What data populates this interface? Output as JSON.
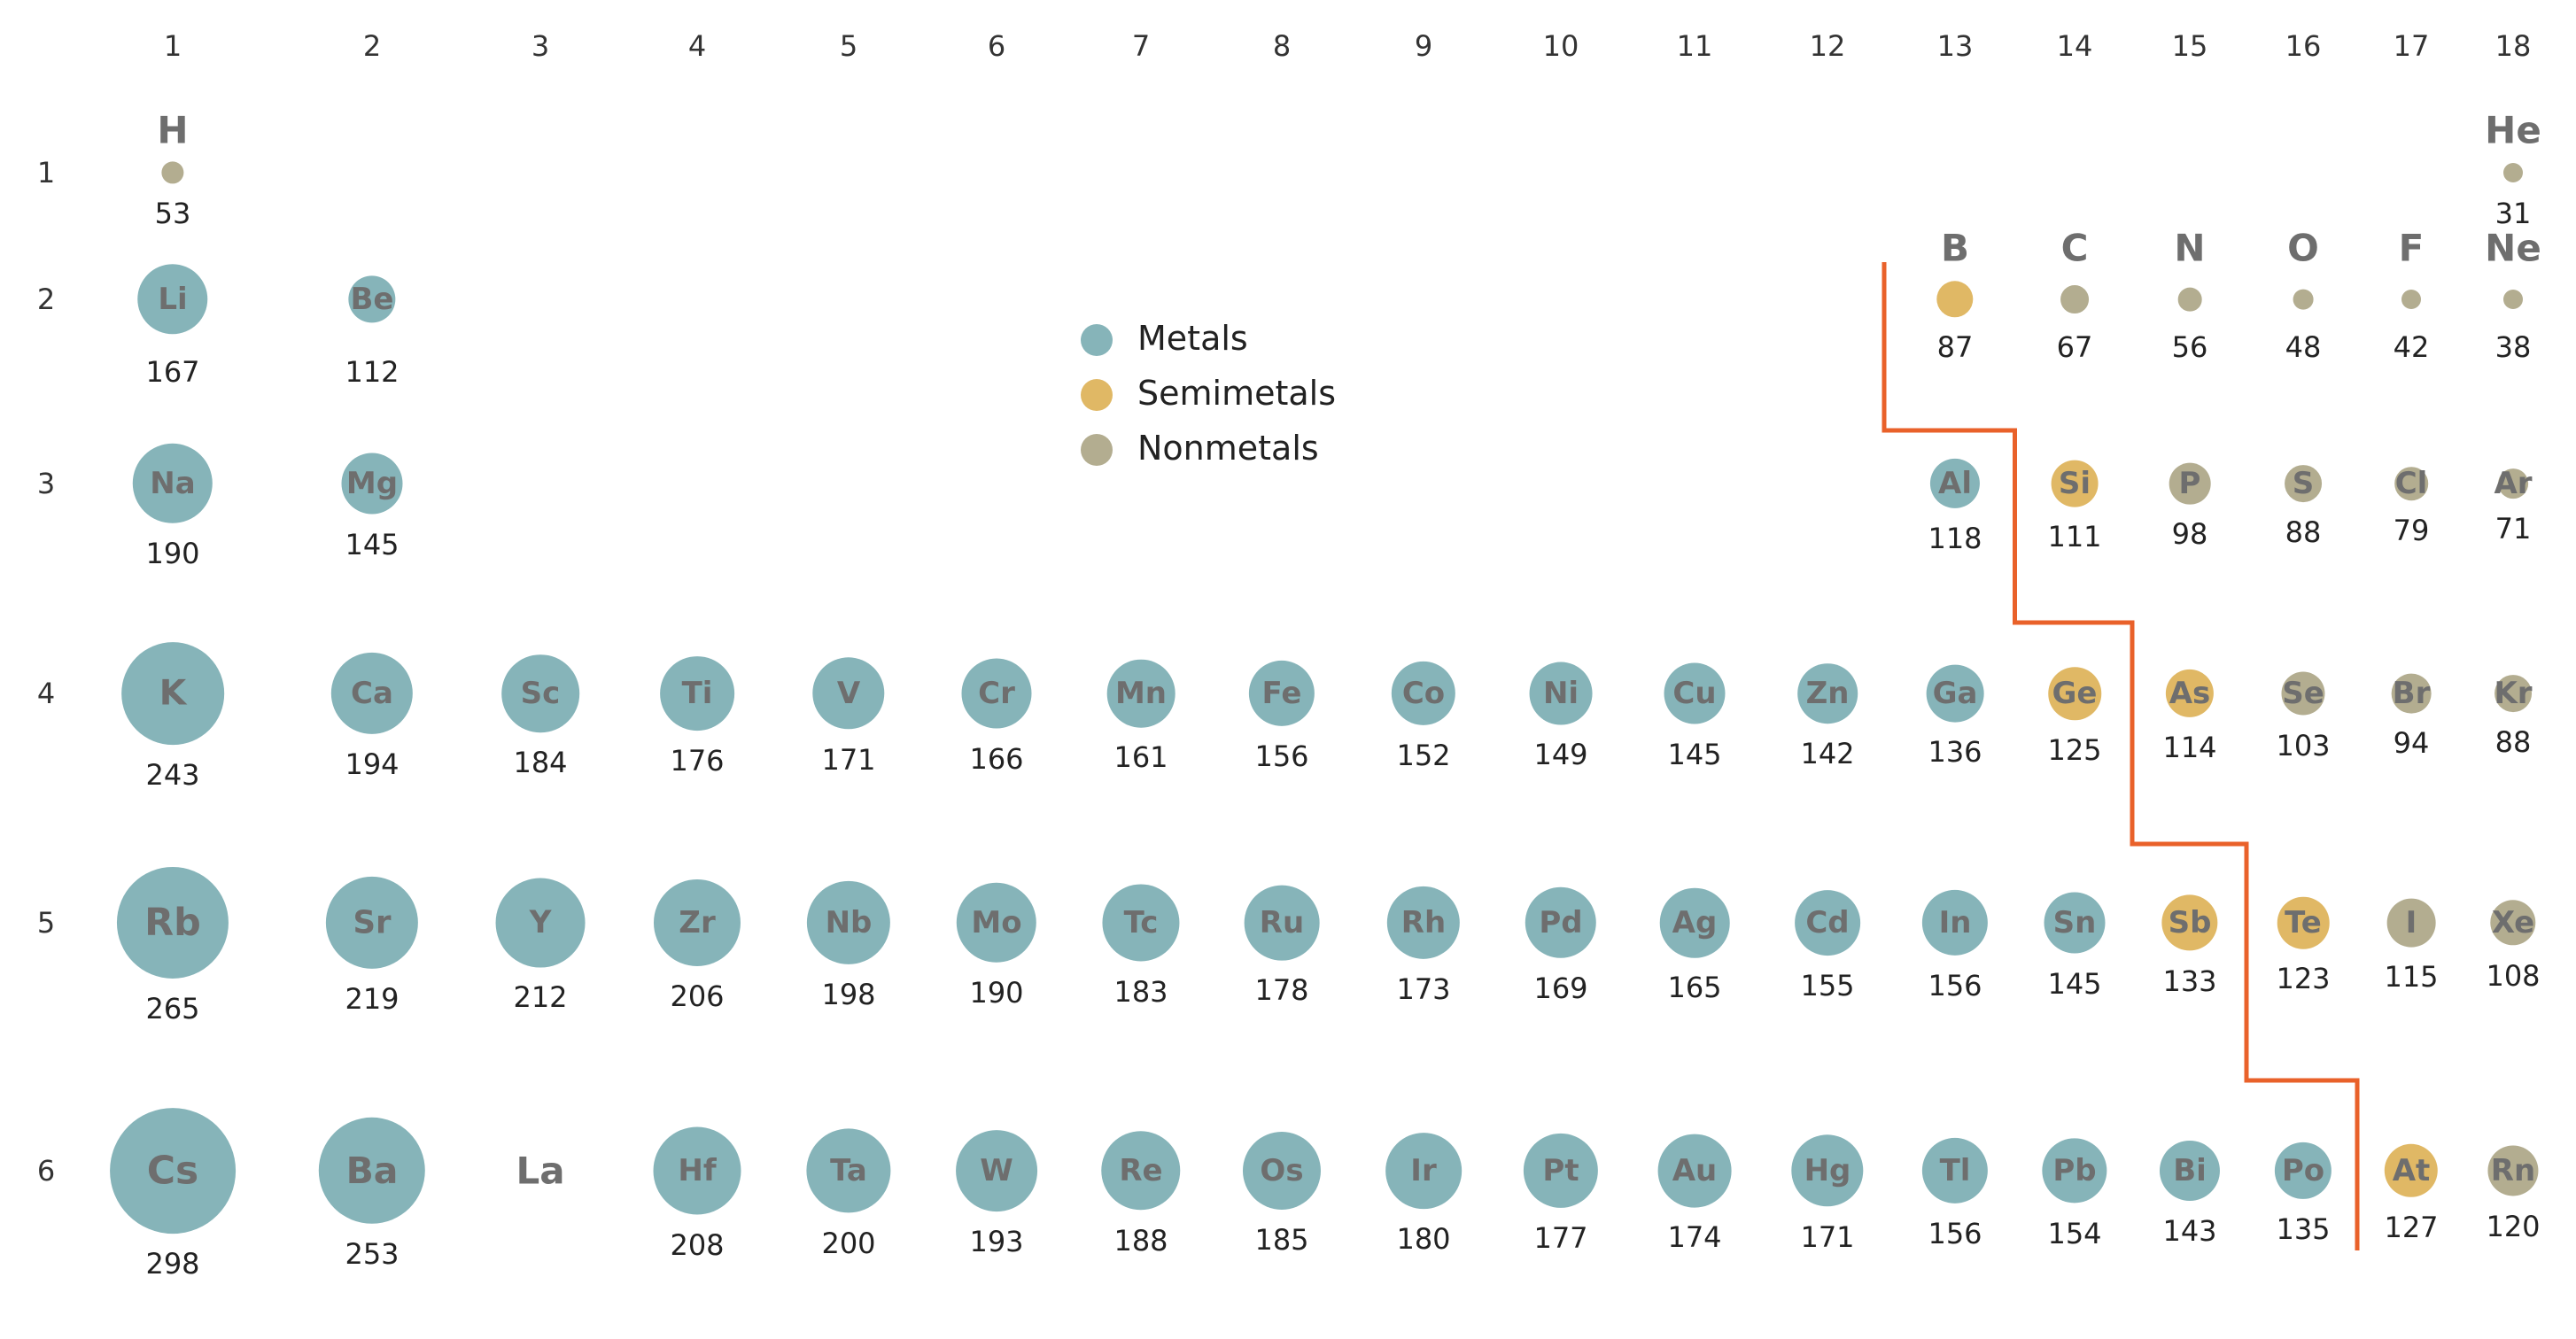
{
  "colors": {
    "metal": "#86b4b9",
    "semimetal": "#e0b865",
    "nonmetal": "#b3ad90",
    "divider": "#e9612a",
    "symbol_text": "#6e6e6e"
  },
  "legend": [
    {
      "category": "metal",
      "label": "Metals"
    },
    {
      "category": "semimetal",
      "label": "Semimetals"
    },
    {
      "category": "nonmetal",
      "label": "Nonmetals"
    }
  ],
  "column_labels": [
    "1",
    "2",
    "3",
    "4",
    "5",
    "6",
    "7",
    "8",
    "9",
    "10",
    "11",
    "12",
    "13",
    "14",
    "15",
    "16",
    "17",
    "18"
  ],
  "row_labels": [
    "1",
    "2",
    "3",
    "4",
    "5",
    "6"
  ],
  "elements": [
    {
      "symbol": "H",
      "period": 1,
      "group": 1,
      "radius": 53,
      "category": "nonmetal"
    },
    {
      "symbol": "He",
      "period": 1,
      "group": 18,
      "radius": 31,
      "category": "nonmetal"
    },
    {
      "symbol": "Li",
      "period": 2,
      "group": 1,
      "radius": 167,
      "category": "metal"
    },
    {
      "symbol": "Be",
      "period": 2,
      "group": 2,
      "radius": 112,
      "category": "metal"
    },
    {
      "symbol": "B",
      "period": 2,
      "group": 13,
      "radius": 87,
      "category": "semimetal"
    },
    {
      "symbol": "C",
      "period": 2,
      "group": 14,
      "radius": 67,
      "category": "nonmetal"
    },
    {
      "symbol": "N",
      "period": 2,
      "group": 15,
      "radius": 56,
      "category": "nonmetal"
    },
    {
      "symbol": "O",
      "period": 2,
      "group": 16,
      "radius": 48,
      "category": "nonmetal"
    },
    {
      "symbol": "F",
      "period": 2,
      "group": 17,
      "radius": 42,
      "category": "nonmetal"
    },
    {
      "symbol": "Ne",
      "period": 2,
      "group": 18,
      "radius": 38,
      "category": "nonmetal"
    },
    {
      "symbol": "Na",
      "period": 3,
      "group": 1,
      "radius": 190,
      "category": "metal"
    },
    {
      "symbol": "Mg",
      "period": 3,
      "group": 2,
      "radius": 145,
      "category": "metal"
    },
    {
      "symbol": "Al",
      "period": 3,
      "group": 13,
      "radius": 118,
      "category": "metal"
    },
    {
      "symbol": "Si",
      "period": 3,
      "group": 14,
      "radius": 111,
      "category": "semimetal"
    },
    {
      "symbol": "P",
      "period": 3,
      "group": 15,
      "radius": 98,
      "category": "nonmetal"
    },
    {
      "symbol": "S",
      "period": 3,
      "group": 16,
      "radius": 88,
      "category": "nonmetal"
    },
    {
      "symbol": "Cl",
      "period": 3,
      "group": 17,
      "radius": 79,
      "category": "nonmetal"
    },
    {
      "symbol": "Ar",
      "period": 3,
      "group": 18,
      "radius": 71,
      "category": "nonmetal"
    },
    {
      "symbol": "K",
      "period": 4,
      "group": 1,
      "radius": 243,
      "category": "metal"
    },
    {
      "symbol": "Ca",
      "period": 4,
      "group": 2,
      "radius": 194,
      "category": "metal"
    },
    {
      "symbol": "Sc",
      "period": 4,
      "group": 3,
      "radius": 184,
      "category": "metal"
    },
    {
      "symbol": "Ti",
      "period": 4,
      "group": 4,
      "radius": 176,
      "category": "metal"
    },
    {
      "symbol": "V",
      "period": 4,
      "group": 5,
      "radius": 171,
      "category": "metal"
    },
    {
      "symbol": "Cr",
      "period": 4,
      "group": 6,
      "radius": 166,
      "category": "metal"
    },
    {
      "symbol": "Mn",
      "period": 4,
      "group": 7,
      "radius": 161,
      "category": "metal"
    },
    {
      "symbol": "Fe",
      "period": 4,
      "group": 8,
      "radius": 156,
      "category": "metal"
    },
    {
      "symbol": "Co",
      "period": 4,
      "group": 9,
      "radius": 152,
      "category": "metal"
    },
    {
      "symbol": "Ni",
      "period": 4,
      "group": 10,
      "radius": 149,
      "category": "metal"
    },
    {
      "symbol": "Cu",
      "period": 4,
      "group": 11,
      "radius": 145,
      "category": "metal"
    },
    {
      "symbol": "Zn",
      "period": 4,
      "group": 12,
      "radius": 142,
      "category": "metal"
    },
    {
      "symbol": "Ga",
      "period": 4,
      "group": 13,
      "radius": 136,
      "category": "metal"
    },
    {
      "symbol": "Ge",
      "period": 4,
      "group": 14,
      "radius": 125,
      "category": "semimetal"
    },
    {
      "symbol": "As",
      "period": 4,
      "group": 15,
      "radius": 114,
      "category": "semimetal"
    },
    {
      "symbol": "Se",
      "period": 4,
      "group": 16,
      "radius": 103,
      "category": "nonmetal"
    },
    {
      "symbol": "Br",
      "period": 4,
      "group": 17,
      "radius": 94,
      "category": "nonmetal"
    },
    {
      "symbol": "Kr",
      "period": 4,
      "group": 18,
      "radius": 88,
      "category": "nonmetal"
    },
    {
      "symbol": "Rb",
      "period": 5,
      "group": 1,
      "radius": 265,
      "category": "metal"
    },
    {
      "symbol": "Sr",
      "period": 5,
      "group": 2,
      "radius": 219,
      "category": "metal"
    },
    {
      "symbol": "Y",
      "period": 5,
      "group": 3,
      "radius": 212,
      "category": "metal"
    },
    {
      "symbol": "Zr",
      "period": 5,
      "group": 4,
      "radius": 206,
      "category": "metal"
    },
    {
      "symbol": "Nb",
      "period": 5,
      "group": 5,
      "radius": 198,
      "category": "metal"
    },
    {
      "symbol": "Mo",
      "period": 5,
      "group": 6,
      "radius": 190,
      "category": "metal"
    },
    {
      "symbol": "Tc",
      "period": 5,
      "group": 7,
      "radius": 183,
      "category": "metal"
    },
    {
      "symbol": "Ru",
      "period": 5,
      "group": 8,
      "radius": 178,
      "category": "metal"
    },
    {
      "symbol": "Rh",
      "period": 5,
      "group": 9,
      "radius": 173,
      "category": "metal"
    },
    {
      "symbol": "Pd",
      "period": 5,
      "group": 10,
      "radius": 169,
      "category": "metal"
    },
    {
      "symbol": "Ag",
      "period": 5,
      "group": 11,
      "radius": 165,
      "category": "metal"
    },
    {
      "symbol": "Cd",
      "period": 5,
      "group": 12,
      "radius": 155,
      "category": "metal"
    },
    {
      "symbol": "In",
      "period": 5,
      "group": 13,
      "radius": 156,
      "category": "metal"
    },
    {
      "symbol": "Sn",
      "period": 5,
      "group": 14,
      "radius": 145,
      "category": "metal"
    },
    {
      "symbol": "Sb",
      "period": 5,
      "group": 15,
      "radius": 133,
      "category": "semimetal"
    },
    {
      "symbol": "Te",
      "period": 5,
      "group": 16,
      "radius": 123,
      "category": "semimetal"
    },
    {
      "symbol": "I",
      "period": 5,
      "group": 17,
      "radius": 115,
      "category": "nonmetal"
    },
    {
      "symbol": "Xe",
      "period": 5,
      "group": 18,
      "radius": 108,
      "category": "nonmetal"
    },
    {
      "symbol": "Cs",
      "period": 6,
      "group": 1,
      "radius": 298,
      "category": "metal"
    },
    {
      "symbol": "Ba",
      "period": 6,
      "group": 2,
      "radius": 253,
      "category": "metal"
    },
    {
      "symbol": "La",
      "period": 6,
      "group": 3,
      "radius": null,
      "category": "none"
    },
    {
      "symbol": "Hf",
      "period": 6,
      "group": 4,
      "radius": 208,
      "category": "metal"
    },
    {
      "symbol": "Ta",
      "period": 6,
      "group": 5,
      "radius": 200,
      "category": "metal"
    },
    {
      "symbol": "W",
      "period": 6,
      "group": 6,
      "radius": 193,
      "category": "metal"
    },
    {
      "symbol": "Re",
      "period": 6,
      "group": 7,
      "radius": 188,
      "category": "metal"
    },
    {
      "symbol": "Os",
      "period": 6,
      "group": 8,
      "radius": 185,
      "category": "metal"
    },
    {
      "symbol": "Ir",
      "period": 6,
      "group": 9,
      "radius": 180,
      "category": "metal"
    },
    {
      "symbol": "Pt",
      "period": 6,
      "group": 10,
      "radius": 177,
      "category": "metal"
    },
    {
      "symbol": "Au",
      "period": 6,
      "group": 11,
      "radius": 174,
      "category": "metal"
    },
    {
      "symbol": "Hg",
      "period": 6,
      "group": 12,
      "radius": 171,
      "category": "metal"
    },
    {
      "symbol": "Tl",
      "period": 6,
      "group": 13,
      "radius": 156,
      "category": "metal"
    },
    {
      "symbol": "Pb",
      "period": 6,
      "group": 14,
      "radius": 154,
      "category": "metal"
    },
    {
      "symbol": "Bi",
      "period": 6,
      "group": 15,
      "radius": 143,
      "category": "metal"
    },
    {
      "symbol": "Po",
      "period": 6,
      "group": 16,
      "radius": 135,
      "category": "metal"
    },
    {
      "symbol": "At",
      "period": 6,
      "group": 17,
      "radius": 127,
      "category": "semimetal"
    },
    {
      "symbol": "Rn",
      "period": 6,
      "group": 18,
      "radius": 120,
      "category": "nonmetal"
    }
  ]
}
